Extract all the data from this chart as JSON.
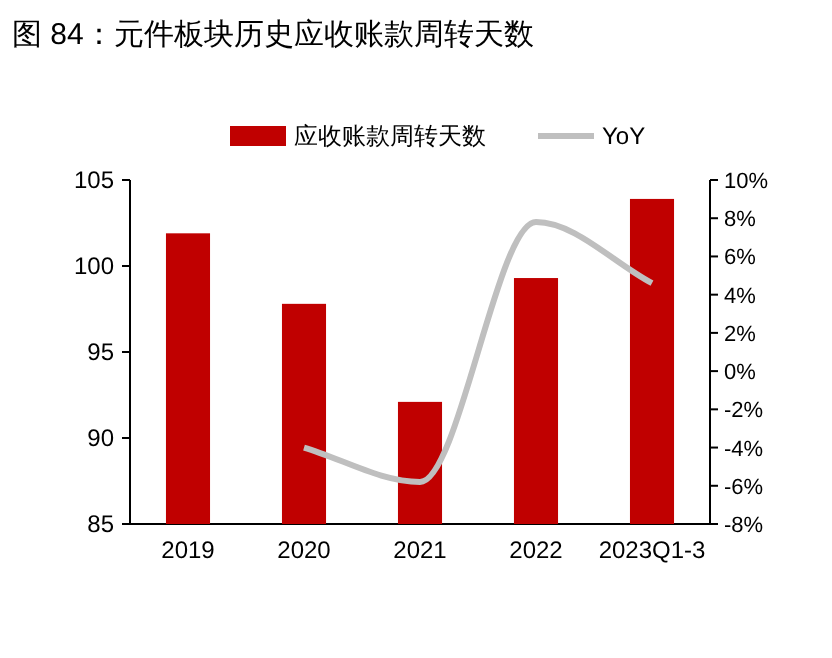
{
  "chart_data": {
    "type": "bar",
    "title": "图 84：元件板块历史应收账款周转天数",
    "categories": [
      "2019",
      "2020",
      "2021",
      "2022",
      "2023Q1-3"
    ],
    "series": [
      {
        "name": "应收账款周转天数",
        "color": "#c00000",
        "values": [
          101.9,
          97.8,
          92.1,
          99.3,
          103.9
        ]
      },
      {
        "name": "YoY",
        "type": "line",
        "axis": "y2",
        "color": "#bfbfbf",
        "values": [
          null,
          -4.0,
          -5.8,
          7.8,
          4.6
        ]
      }
    ],
    "ylim": [
      85,
      105
    ],
    "yticks": [
      85,
      90,
      95,
      100,
      105
    ],
    "y2lim": [
      -8,
      10
    ],
    "y2ticks": [
      {
        "value": -8,
        "label": "-8%"
      },
      {
        "value": -6,
        "label": "-6%"
      },
      {
        "value": -4,
        "label": "-4%"
      },
      {
        "value": -2,
        "label": "-2%"
      },
      {
        "value": 0,
        "label": "0%"
      },
      {
        "value": 2,
        "label": "2%"
      },
      {
        "value": 4,
        "label": "4%"
      },
      {
        "value": 6,
        "label": "6%"
      },
      {
        "value": 8,
        "label": "8%"
      },
      {
        "value": 10,
        "label": "10%"
      }
    ],
    "legend": "top",
    "grid": false
  }
}
